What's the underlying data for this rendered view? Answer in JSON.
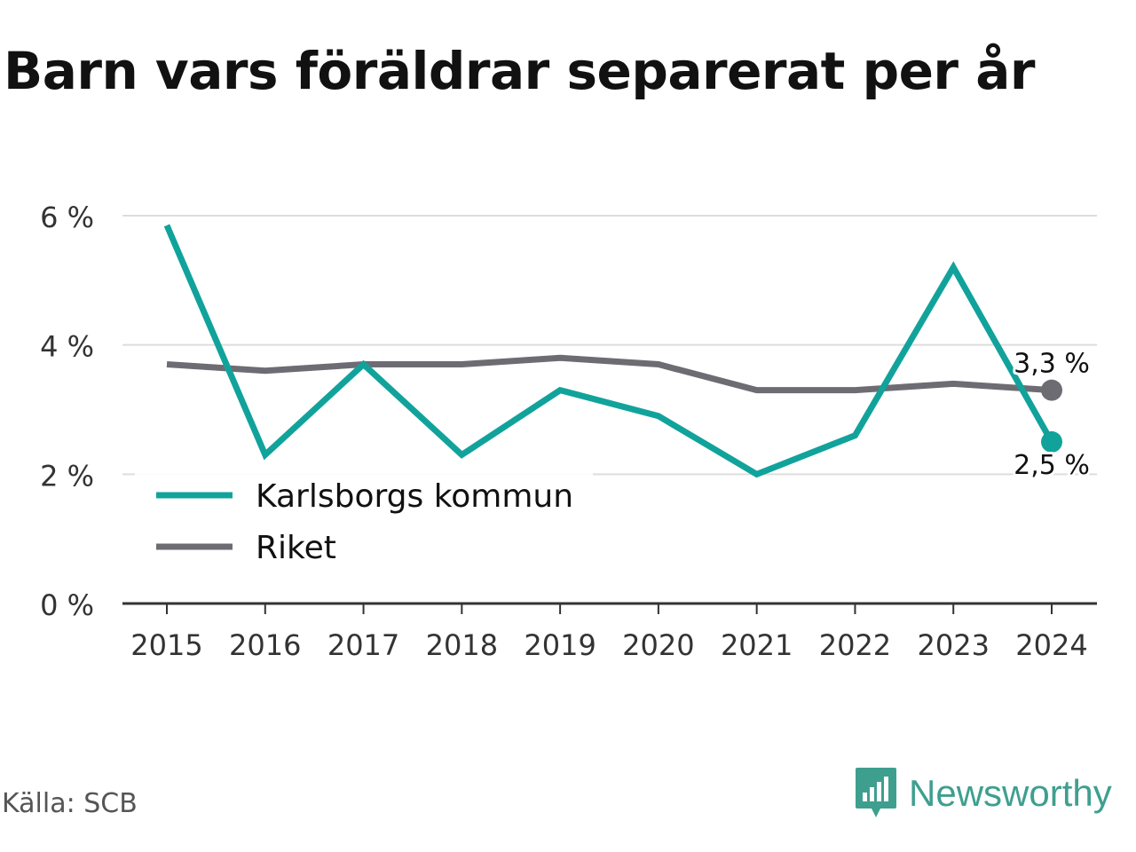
{
  "title": "Barn vars föräldrar separerat per år",
  "source": "Källa: SCB",
  "brand": "Newsworthy",
  "colors": {
    "karlsborg": "#11a39b",
    "riket": "#6e6c73",
    "grid": "#dddddd",
    "axis": "#333333"
  },
  "chart_data": {
    "type": "line",
    "title": "Barn vars föräldrar separerat per år",
    "x": [
      2015,
      2016,
      2017,
      2018,
      2019,
      2020,
      2021,
      2022,
      2023,
      2024
    ],
    "ylim": [
      0,
      6
    ],
    "yticks": [
      0,
      2,
      4,
      6
    ],
    "ytick_labels": [
      "0 %",
      "2 %",
      "4 %",
      "6 %"
    ],
    "grid": true,
    "legend_placement": "bottom-left",
    "series": [
      {
        "name": "Karlsborgs kommun",
        "color": "#11a39b",
        "values": [
          5.85,
          2.3,
          3.7,
          2.3,
          3.3,
          2.9,
          2.0,
          2.6,
          5.2,
          2.5
        ],
        "end_label": "2,5 %"
      },
      {
        "name": "Riket",
        "color": "#6e6c73",
        "values": [
          3.7,
          3.6,
          3.7,
          3.7,
          3.8,
          3.7,
          3.3,
          3.3,
          3.4,
          3.3
        ],
        "end_label": "3,3 %"
      }
    ]
  }
}
